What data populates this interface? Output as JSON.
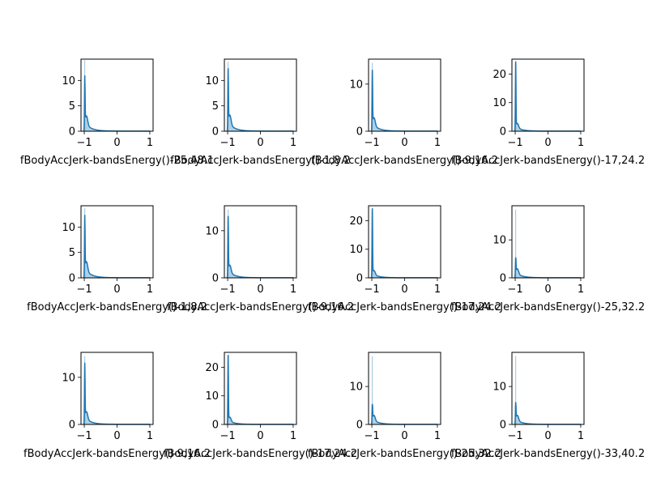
{
  "chart_data": [
    {
      "type": "area",
      "xlabel": "fBodyAccJerk-bandsEnergy()-25,48.1",
      "xlim": [
        -1.1,
        1.1
      ],
      "ylim": [
        0,
        14.2
      ],
      "yticks": [
        0,
        5,
        10
      ],
      "xticks": [
        -1,
        0,
        1
      ],
      "peak": 10.5,
      "shoulder": 1.9,
      "hist_max": 14.0
    },
    {
      "type": "area",
      "xlabel": "fBodyAccJerk-bandsEnergy()-1,8.2",
      "xlim": [
        -1.1,
        1.1
      ],
      "ylim": [
        0,
        14.2
      ],
      "yticks": [
        0,
        5,
        10
      ],
      "xticks": [
        -1,
        0,
        1
      ],
      "peak": 11.9,
      "shoulder": 2.0,
      "hist_max": 13.7
    },
    {
      "type": "area",
      "xlabel": "fBodyAccJerk-bandsEnergy()-9,16.2",
      "xlim": [
        -1.1,
        1.1
      ],
      "ylim": [
        0,
        15.3
      ],
      "yticks": [
        0,
        10
      ],
      "xticks": [
        -1,
        0,
        1
      ],
      "peak": 12.6,
      "shoulder": 1.8,
      "hist_max": 14.5
    },
    {
      "type": "area",
      "xlabel": "fBodyAccJerk-bandsEnergy()-17,24.2",
      "xlim": [
        -1.1,
        1.1
      ],
      "ylim": [
        0,
        25.2
      ],
      "yticks": [
        0,
        10,
        20
      ],
      "xticks": [
        -1,
        0,
        1
      ],
      "peak": 24.1,
      "shoulder": 1.7,
      "hist_max": 24.3
    },
    {
      "type": "area",
      "xlabel": "fBodyAccJerk-bandsEnergy()-1,8.2",
      "xlim": [
        -1.1,
        1.1
      ],
      "ylim": [
        0,
        14.2
      ],
      "yticks": [
        0,
        5,
        10
      ],
      "xticks": [
        -1,
        0,
        1
      ],
      "peak": 11.9,
      "shoulder": 2.0,
      "hist_max": 13.7
    },
    {
      "type": "area",
      "xlabel": "fBodyAccJerk-bandsEnergy()-9,16.2",
      "xlim": [
        -1.1,
        1.1
      ],
      "ylim": [
        0,
        15.3
      ],
      "yticks": [
        0,
        10
      ],
      "xticks": [
        -1,
        0,
        1
      ],
      "peak": 12.7,
      "shoulder": 1.7,
      "hist_max": 14.5
    },
    {
      "type": "area",
      "xlabel": "fBodyAccJerk-bandsEnergy()-17,24.2",
      "xlim": [
        -1.1,
        1.1
      ],
      "ylim": [
        0,
        25.2
      ],
      "yticks": [
        0,
        10,
        20
      ],
      "xticks": [
        -1,
        0,
        1
      ],
      "peak": 24.0,
      "shoulder": 1.6,
      "hist_max": 24.2
    },
    {
      "type": "area",
      "xlabel": "fBodyAccJerk-bandsEnergy()-25,32.2",
      "xlim": [
        -1.1,
        1.1
      ],
      "ylim": [
        0,
        19.0
      ],
      "yticks": [
        0,
        10
      ],
      "xticks": [
        -1,
        0,
        1
      ],
      "peak": 5.0,
      "shoulder": 1.5,
      "hist_max": 18.0
    },
    {
      "type": "area",
      "xlabel": "fBodyAccJerk-bandsEnergy()-9,16.2",
      "xlim": [
        -1.1,
        1.1
      ],
      "ylim": [
        0,
        15.3
      ],
      "yticks": [
        0,
        10
      ],
      "xticks": [
        -1,
        0,
        1
      ],
      "peak": 12.7,
      "shoulder": 1.7,
      "hist_max": 14.5
    },
    {
      "type": "area",
      "xlabel": "fBodyAccJerk-bandsEnergy()-17,24.2",
      "xlim": [
        -1.1,
        1.1
      ],
      "ylim": [
        0,
        25.2
      ],
      "yticks": [
        0,
        10,
        20
      ],
      "xticks": [
        -1,
        0,
        1
      ],
      "peak": 24.0,
      "shoulder": 1.6,
      "hist_max": 24.2
    },
    {
      "type": "area",
      "xlabel": "fBodyAccJerk-bandsEnergy()-25,32.2",
      "xlim": [
        -1.1,
        1.1
      ],
      "ylim": [
        0,
        19.0
      ],
      "yticks": [
        0,
        10
      ],
      "xticks": [
        -1,
        0,
        1
      ],
      "peak": 5.0,
      "shoulder": 1.5,
      "hist_max": 18.0
    },
    {
      "type": "area",
      "xlabel": "fBodyAccJerk-bandsEnergy()-33,40.2",
      "xlim": [
        -1.1,
        1.1
      ],
      "ylim": [
        0,
        19.0
      ],
      "yticks": [
        0,
        10
      ],
      "xticks": [
        -1,
        0,
        1
      ],
      "peak": 5.5,
      "shoulder": 1.5,
      "hist_max": 18.0
    }
  ],
  "colors": {
    "line": "#1f77b4",
    "fill": "#1f77b4",
    "axes": "#000000"
  }
}
